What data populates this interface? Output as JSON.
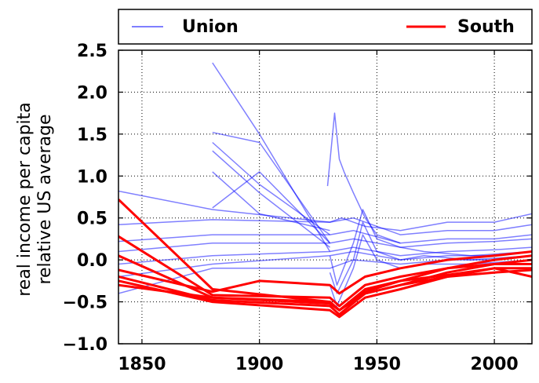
{
  "chart_data": {
    "type": "line",
    "xlabel": "",
    "ylabel": [
      "real income per capita",
      "relative US average"
    ],
    "xlim": [
      1840,
      2016
    ],
    "ylim": [
      -1.0,
      2.5
    ],
    "x_ticks": [
      1850,
      1900,
      1950,
      2000
    ],
    "x_tick_labels": [
      "1850",
      "1900",
      "1950",
      "2000"
    ],
    "y_ticks": [
      -1.0,
      -0.5,
      0.0,
      0.5,
      1.0,
      1.5,
      2.0,
      2.5
    ],
    "y_tick_labels": [
      "−1.0",
      "−0.5",
      "0.0",
      "0.5",
      "1.0",
      "1.5",
      "2.0",
      "2.5"
    ],
    "grid": true,
    "legend": {
      "position": "top",
      "entries": [
        {
          "label": "Union",
          "color": "#0000ff",
          "alpha": 0.5
        },
        {
          "label": "South",
          "color": "#ff0000",
          "alpha": 1.0
        }
      ]
    },
    "series": [
      {
        "group": "Union",
        "x": [
          1880,
          1900,
          1930
        ],
        "y": [
          2.35,
          1.5,
          0.1
        ]
      },
      {
        "group": "Union",
        "x": [
          1880,
          1900,
          1930
        ],
        "y": [
          1.52,
          1.4,
          0.2
        ]
      },
      {
        "group": "Union",
        "x": [
          1880,
          1900,
          1930
        ],
        "y": [
          1.4,
          0.9,
          0.3
        ]
      },
      {
        "group": "Union",
        "x": [
          1880,
          1900,
          1930
        ],
        "y": [
          1.3,
          0.8,
          0.15
        ]
      },
      {
        "group": "Union",
        "x": [
          1880,
          1900,
          1930
        ],
        "y": [
          1.05,
          0.55,
          0.35
        ]
      },
      {
        "group": "Union",
        "x": [
          1880,
          1900,
          1930
        ],
        "y": [
          0.62,
          1.05,
          0.2
        ]
      },
      {
        "group": "Union",
        "x": [
          1840,
          1880,
          1930,
          1935,
          1945,
          1960,
          1980,
          2000,
          2016
        ],
        "y": [
          0.82,
          0.6,
          0.45,
          0.5,
          0.4,
          0.35,
          0.45,
          0.45,
          0.55
        ]
      },
      {
        "group": "Union",
        "x": [
          1840,
          1880,
          1930,
          1940,
          1960,
          1980,
          2000,
          2016
        ],
        "y": [
          0.42,
          0.48,
          0.45,
          0.5,
          0.3,
          0.35,
          0.35,
          0.42
        ]
      },
      {
        "group": "Union",
        "x": [
          1840,
          1880,
          1930,
          1940,
          1960,
          1980,
          2000,
          2016
        ],
        "y": [
          0.22,
          0.3,
          0.3,
          0.35,
          0.2,
          0.25,
          0.25,
          0.3
        ]
      },
      {
        "group": "Union",
        "x": [
          1840,
          1880,
          1930,
          1940,
          1960,
          1980,
          2000,
          2016
        ],
        "y": [
          0.1,
          0.2,
          0.2,
          0.25,
          0.15,
          0.2,
          0.22,
          0.25
        ]
      },
      {
        "group": "Union",
        "x": [
          1840,
          1880,
          1930,
          1940,
          1960,
          1980,
          2000,
          2016
        ],
        "y": [
          -0.05,
          0.05,
          0.1,
          0.15,
          0.05,
          0.1,
          0.12,
          0.15
        ]
      },
      {
        "group": "Union",
        "x": [
          1840,
          1880,
          1930,
          1940,
          1960,
          1980,
          2000,
          2016
        ],
        "y": [
          -0.2,
          -0.05,
          0.05,
          0.1,
          0.0,
          0.05,
          0.05,
          0.1
        ]
      },
      {
        "group": "Union",
        "x": [
          1840,
          1880,
          1930,
          1940,
          1960,
          1980,
          2000,
          2016
        ],
        "y": [
          -0.4,
          -0.1,
          -0.1,
          0.0,
          -0.05,
          0.0,
          0.0,
          0.05
        ]
      },
      {
        "group": "Union",
        "x": [
          1929,
          1932,
          1934,
          1936,
          1940,
          1945,
          1950,
          1960
        ],
        "y": [
          0.88,
          1.75,
          1.2,
          1.05,
          0.8,
          0.5,
          0.3,
          0.2
        ]
      },
      {
        "group": "Union",
        "x": [
          1930,
          1933,
          1940,
          1944,
          1950,
          1960,
          1970,
          1990,
          2016
        ],
        "y": [
          -0.3,
          -0.55,
          -0.1,
          0.3,
          0.0,
          -0.1,
          -0.05,
          -0.05,
          0.0
        ]
      },
      {
        "group": "Union",
        "x": [
          1930,
          1933,
          1940,
          1944,
          1950,
          1960,
          1970,
          1990,
          2016
        ],
        "y": [
          -0.15,
          -0.4,
          0.0,
          0.45,
          0.1,
          0.0,
          0.05,
          0.0,
          0.05
        ]
      },
      {
        "group": "Union",
        "x": [
          1930,
          1933,
          1940,
          1944,
          1950,
          1960,
          1970,
          1990,
          2016
        ],
        "y": [
          0.05,
          -0.3,
          0.2,
          0.6,
          0.25,
          0.15,
          0.1,
          0.05,
          0.1
        ]
      },
      {
        "group": "South",
        "x": [
          1840,
          1880,
          1930,
          1934,
          1945,
          1960,
          1980,
          2000,
          2016
        ],
        "y": [
          0.72,
          -0.35,
          -0.5,
          -0.6,
          -0.4,
          -0.3,
          -0.15,
          -0.05,
          0.0
        ]
      },
      {
        "group": "South",
        "x": [
          1840,
          1880,
          1930,
          1934,
          1945,
          1960,
          1980,
          2000,
          2016
        ],
        "y": [
          0.28,
          -0.42,
          -0.45,
          -0.55,
          -0.3,
          -0.2,
          -0.1,
          0.0,
          0.05
        ]
      },
      {
        "group": "South",
        "x": [
          1840,
          1880,
          1930,
          1934,
          1945,
          1960,
          1980,
          2000,
          2016
        ],
        "y": [
          0.05,
          -0.45,
          -0.5,
          -0.6,
          -0.35,
          -0.25,
          -0.1,
          -0.05,
          -0.05
        ]
      },
      {
        "group": "South",
        "x": [
          1840,
          1880,
          1900,
          1930,
          1934,
          1945,
          1960,
          1980,
          2000,
          2016
        ],
        "y": [
          -0.12,
          -0.38,
          -0.25,
          -0.3,
          -0.4,
          -0.2,
          -0.1,
          0.0,
          0.05,
          0.1
        ]
      },
      {
        "group": "South",
        "x": [
          1840,
          1880,
          1930,
          1934,
          1945,
          1960,
          1980,
          2000,
          2016
        ],
        "y": [
          -0.2,
          -0.48,
          -0.55,
          -0.65,
          -0.4,
          -0.3,
          -0.2,
          -0.1,
          -0.1
        ]
      },
      {
        "group": "South",
        "x": [
          1840,
          1880,
          1930,
          1934,
          1945,
          1960,
          1980,
          2000,
          2016
        ],
        "y": [
          -0.25,
          -0.5,
          -0.6,
          -0.68,
          -0.45,
          -0.35,
          -0.2,
          -0.15,
          -0.12
        ]
      },
      {
        "group": "South",
        "x": [
          1840,
          1880,
          1930,
          1934,
          1945,
          1960,
          1980,
          2000,
          2016
        ],
        "y": [
          -0.3,
          -0.45,
          -0.52,
          -0.6,
          -0.38,
          -0.25,
          -0.18,
          -0.1,
          -0.2
        ]
      }
    ]
  }
}
